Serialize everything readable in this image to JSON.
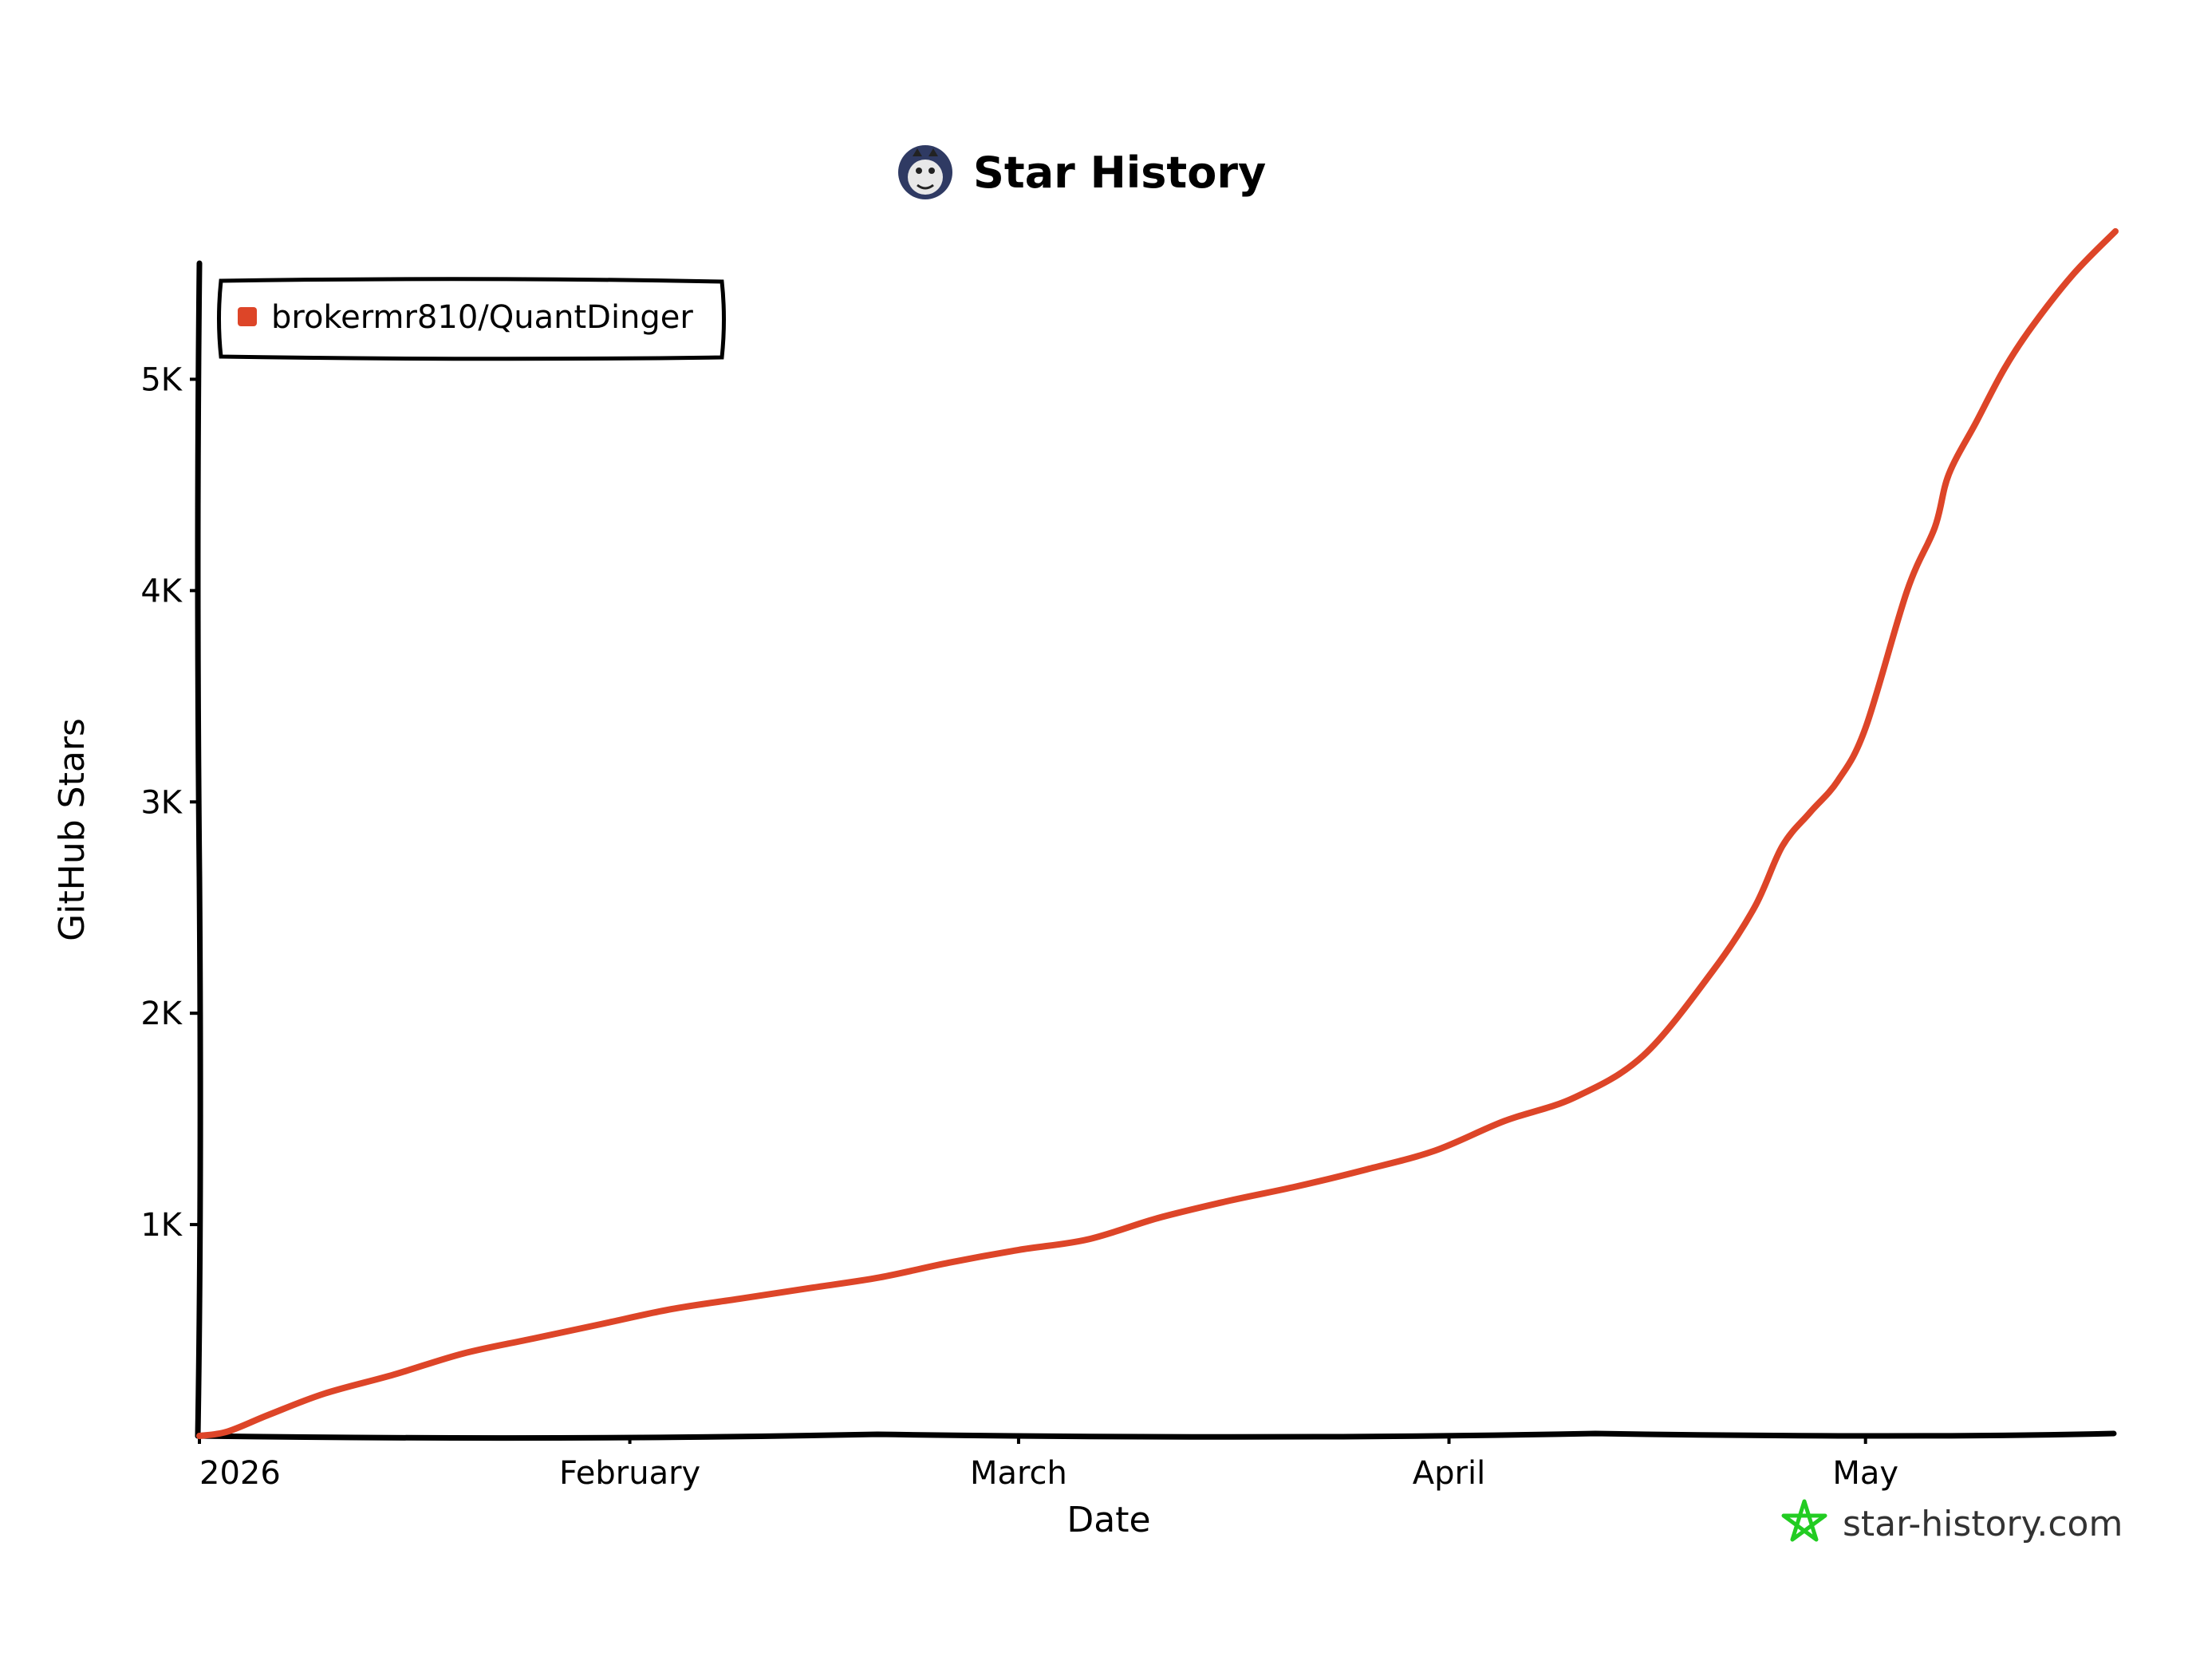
{
  "chart_data": {
    "type": "line",
    "title": "Star History",
    "xlabel": "Date",
    "ylabel": "GitHub Stars",
    "x_ticks": [
      "2026",
      "February",
      "March",
      "April",
      "May"
    ],
    "y_ticks": [
      "1K",
      "2K",
      "3K",
      "4K",
      "5K"
    ],
    "ylim": [
      0,
      5700
    ],
    "xlim": [
      "2026-01-01",
      "2026-05-19"
    ],
    "grid": false,
    "legend": {
      "position": "top-left"
    },
    "series": [
      {
        "name": "brokermr810/QuantDinger",
        "color": "#dd4528",
        "x": [
          "2026-01-01",
          "2026-01-03",
          "2026-01-06",
          "2026-01-10",
          "2026-01-15",
          "2026-01-20",
          "2026-01-25",
          "2026-01-30",
          "2026-02-04",
          "2026-02-09",
          "2026-02-14",
          "2026-02-19",
          "2026-02-24",
          "2026-03-01",
          "2026-03-06",
          "2026-03-11",
          "2026-03-16",
          "2026-03-21",
          "2026-03-26",
          "2026-03-31",
          "2026-04-05",
          "2026-04-10",
          "2026-04-15",
          "2026-04-20",
          "2026-04-23",
          "2026-04-25",
          "2026-04-27",
          "2026-04-29",
          "2026-05-01",
          "2026-05-04",
          "2026-05-06",
          "2026-05-07",
          "2026-05-09",
          "2026-05-11",
          "2026-05-13",
          "2026-05-16",
          "2026-05-19"
        ],
        "y": [
          0,
          20,
          100,
          200,
          290,
          390,
          460,
          530,
          600,
          650,
          700,
          750,
          820,
          880,
          930,
          1030,
          1110,
          1180,
          1260,
          1350,
          1490,
          1600,
          1800,
          2200,
          2500,
          2790,
          2950,
          3100,
          3350,
          4000,
          4300,
          4550,
          4800,
          5050,
          5250,
          5500,
          5700
        ]
      }
    ]
  },
  "colors": {
    "line": "#dd4528",
    "axis": "#000000",
    "watermark_icon": "#22cc22"
  },
  "watermark": "star-history.com",
  "logo_icon": "star-history-logo-icon",
  "watermark_icon": "star-outline-icon"
}
